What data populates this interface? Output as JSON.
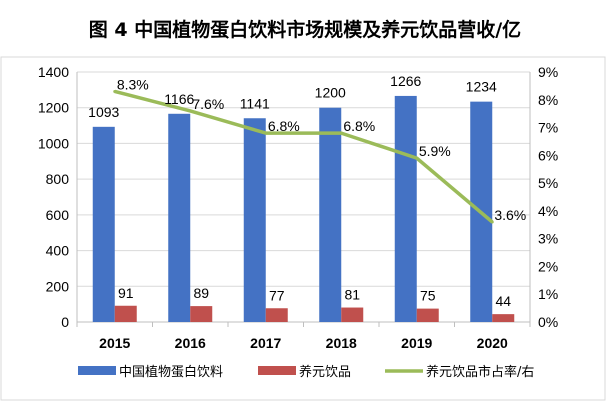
{
  "chart_data": {
    "type": "bar",
    "title": "图 4  中国植物蛋白饮料市场规模及养元饮品营收/亿",
    "categories": [
      "2015",
      "2016",
      "2017",
      "2018",
      "2019",
      "2020"
    ],
    "series": [
      {
        "name": "中国植物蛋白饮料",
        "type": "bar",
        "axis": "left",
        "color": "#4472C4",
        "values": [
          1093,
          1166,
          1141,
          1200,
          1266,
          1234
        ],
        "labels": [
          "1093",
          "1166",
          "1141",
          "1200",
          "1266",
          "1234"
        ]
      },
      {
        "name": "养元饮品",
        "type": "bar",
        "axis": "left",
        "color": "#C0504D",
        "values": [
          91,
          89,
          77,
          81,
          75,
          44
        ],
        "labels": [
          "91",
          "89",
          "77",
          "81",
          "75",
          "44"
        ]
      },
      {
        "name": "养元饮品市占率/右",
        "type": "line",
        "axis": "right",
        "color": "#9BBB59",
        "values": [
          8.3,
          7.6,
          6.8,
          6.8,
          5.9,
          3.6
        ],
        "labels": [
          "8.3%",
          "7.6%",
          "6.8%",
          "6.8%",
          "5.9%",
          "3.6%"
        ]
      }
    ],
    "y_left": {
      "min": 0,
      "max": 1400,
      "step": 200,
      "ticks": [
        "0",
        "200",
        "400",
        "600",
        "800",
        "1000",
        "1200",
        "1400"
      ]
    },
    "y_right": {
      "min": 0,
      "max": 9,
      "step": 1,
      "ticks": [
        "0%",
        "1%",
        "2%",
        "3%",
        "4%",
        "5%",
        "6%",
        "7%",
        "8%",
        "9%"
      ]
    },
    "grid": true,
    "legend_position": "bottom"
  }
}
